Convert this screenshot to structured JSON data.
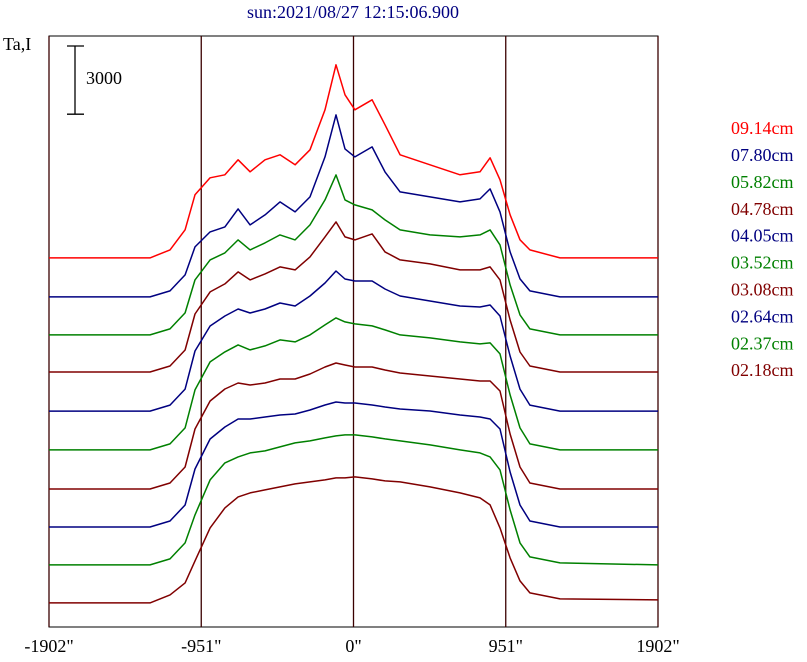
{
  "chart_data": {
    "type": "line",
    "title": "sun:2021/08/27 12:15:06.900",
    "ylabel": "Ta,I",
    "scale_bar": 3000,
    "x": [
      -1902,
      -1271,
      -1146,
      -1052,
      -990,
      -896,
      -803,
      -721,
      -646,
      -553,
      -459,
      -365,
      -272,
      -178,
      -109,
      -53,
      9,
      116,
      197,
      291,
      478,
      665,
      790,
      853,
      915,
      978,
      1040,
      1102,
      1290,
      1902
    ],
    "xlim": [
      -1902,
      1902
    ],
    "xticks": [
      {
        "value": -1902,
        "label": "-1902\""
      },
      {
        "value": -951,
        "label": "-951\""
      },
      {
        "value": 0,
        "label": "0\""
      },
      {
        "value": 951,
        "label": "951\""
      },
      {
        "value": 1902,
        "label": "1902\""
      }
    ],
    "ylim": [
      0,
      26000
    ],
    "series": [
      {
        "name": "09.14cm",
        "color": "#ff0000",
        "values": [
          16240,
          16240,
          16592,
          17472,
          19012,
          19760,
          19892,
          20552,
          20024,
          20552,
          20772,
          20332,
          20992,
          22752,
          24732,
          23412,
          22752,
          23192,
          22092,
          20772,
          20332,
          19892,
          20024,
          20640,
          19672,
          18132,
          17032,
          16592,
          16240,
          16240
        ]
      },
      {
        "name": "07.80cm",
        "color": "#000080",
        "values": [
          14520,
          14520,
          14784,
          15488,
          16720,
          17380,
          17600,
          18392,
          17688,
          18128,
          18700,
          18260,
          18920,
          20680,
          22528,
          21032,
          20680,
          21120,
          20020,
          19140,
          18920,
          18700,
          18832,
          19272,
          18260,
          16500,
          15312,
          14784,
          14520,
          14520
        ]
      },
      {
        "name": "05.82cm",
        "color": "#008000",
        "values": [
          12850,
          12850,
          13114,
          13818,
          15270,
          16150,
          16458,
          17030,
          16590,
          16898,
          17250,
          17030,
          17690,
          18790,
          19890,
          18790,
          18570,
          18350,
          17910,
          17470,
          17250,
          17162,
          17250,
          17470,
          16810,
          15050,
          13730,
          13114,
          12850,
          12850
        ]
      },
      {
        "name": "04.78cm",
        "color": "#800000",
        "values": [
          11220,
          11220,
          11484,
          12188,
          13772,
          14740,
          15092,
          15620,
          15268,
          15532,
          15840,
          15708,
          16280,
          17160,
          17820,
          17160,
          17028,
          17292,
          16500,
          16148,
          15972,
          15708,
          15708,
          15840,
          15268,
          13508,
          12100,
          11484,
          11220,
          11220
        ]
      },
      {
        "name": "04.05cm",
        "color": "#000080",
        "values": [
          9500,
          9500,
          9764,
          10468,
          12140,
          13240,
          13680,
          13988,
          13812,
          13988,
          14252,
          14120,
          14560,
          15132,
          15660,
          15308,
          15220,
          15220,
          14868,
          14560,
          14340,
          14120,
          14076,
          14164,
          13680,
          11920,
          10468,
          9764,
          9500,
          9500
        ]
      },
      {
        "name": "03.52cm",
        "color": "#008000",
        "values": [
          7790,
          7790,
          8054,
          8758,
          10430,
          11662,
          12102,
          12410,
          12190,
          12366,
          12630,
          12542,
          12850,
          13290,
          13598,
          13422,
          13334,
          13246,
          13070,
          12850,
          12718,
          12542,
          12454,
          12498,
          12014,
          10210,
          8758,
          8054,
          7790,
          7790
        ]
      },
      {
        "name": "03.08cm",
        "color": "#800000",
        "values": [
          6070,
          6070,
          6334,
          7038,
          8710,
          9942,
          10470,
          10734,
          10646,
          10734,
          10910,
          10910,
          11130,
          11438,
          11614,
          11526,
          11438,
          11438,
          11306,
          11174,
          11042,
          10910,
          10822,
          10822,
          10382,
          8490,
          7038,
          6334,
          6070,
          6070
        ]
      },
      {
        "name": "02.64cm",
        "color": "#000080",
        "values": [
          4400,
          4400,
          4664,
          5368,
          6952,
          8272,
          8800,
          9152,
          9152,
          9240,
          9328,
          9372,
          9548,
          9768,
          9900,
          9856,
          9856,
          9768,
          9680,
          9592,
          9504,
          9328,
          9240,
          9152,
          8712,
          6820,
          5368,
          4664,
          4400,
          4400
        ]
      },
      {
        "name": "02.37cm",
        "color": "#008000",
        "values": [
          2730,
          2730,
          2994,
          3698,
          4930,
          6470,
          7218,
          7482,
          7658,
          7746,
          7922,
          8098,
          8186,
          8318,
          8406,
          8450,
          8450,
          8362,
          8274,
          8186,
          8010,
          7790,
          7658,
          7482,
          6910,
          5150,
          3698,
          3082,
          2818,
          2730
        ]
      },
      {
        "name": "02.18cm",
        "color": "#800000",
        "values": [
          1060,
          1060,
          1412,
          1940,
          2908,
          4360,
          5240,
          5724,
          5900,
          6032,
          6164,
          6296,
          6384,
          6472,
          6560,
          6560,
          6604,
          6516,
          6428,
          6384,
          6164,
          5900,
          5680,
          5372,
          4360,
          3040,
          2028,
          1500,
          1236,
          1192
        ]
      }
    ],
    "grid": true,
    "legend": "right"
  }
}
